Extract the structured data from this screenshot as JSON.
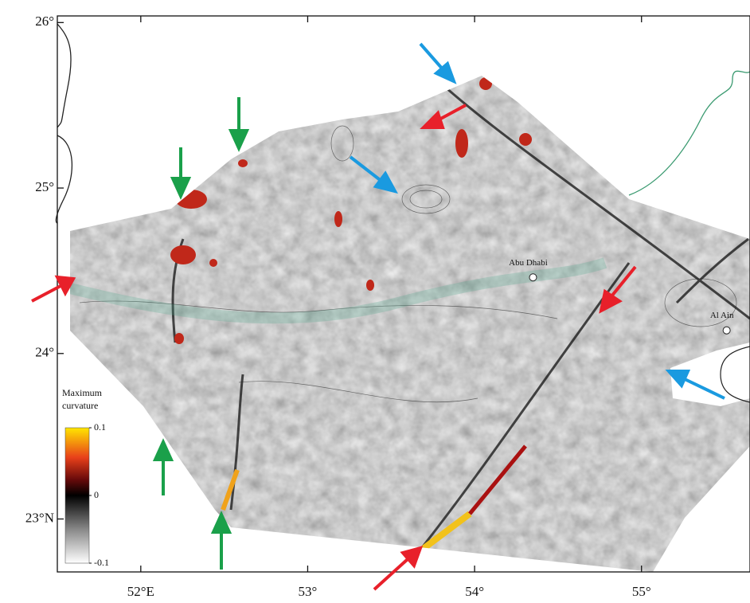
{
  "map": {
    "lon_range": [
      51.5,
      55.65
    ],
    "lat_range": [
      22.68,
      26.04
    ],
    "lat_ticks": [
      {
        "value": 26,
        "label": "26°"
      },
      {
        "value": 25,
        "label": "25°"
      },
      {
        "value": 24,
        "label": "24°"
      },
      {
        "value": 23,
        "label": "23°N"
      }
    ],
    "lon_ticks": [
      {
        "value": 52,
        "label": "52°E"
      },
      {
        "value": 53,
        "label": "53°"
      },
      {
        "value": 54,
        "label": "54°"
      },
      {
        "value": 55,
        "label": "55°"
      }
    ],
    "places": [
      {
        "name": "Abu Dhabi",
        "lon": 54.35,
        "lat": 24.46
      },
      {
        "name": "Al Ain",
        "lon": 55.51,
        "lat": 24.14
      }
    ]
  },
  "colorbar": {
    "title": [
      "Maximum",
      "curvature"
    ],
    "range": [
      -0.1,
      0.1
    ],
    "ticks": [
      0.1,
      0,
      -0.1
    ]
  }
}
